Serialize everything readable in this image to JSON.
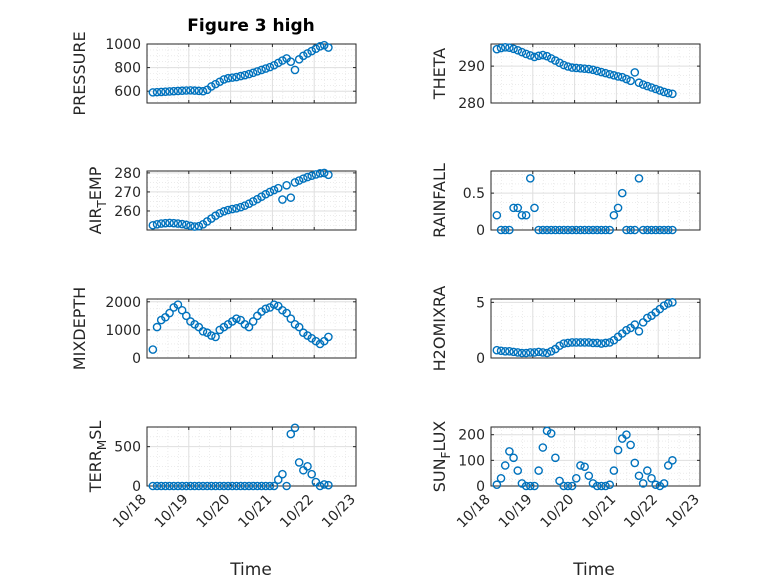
{
  "figure": {
    "title": "Figure 3 high",
    "xlabel": "Time"
  },
  "chart_data": [
    {
      "type": "scatter",
      "ylabel": "PRESSURE",
      "ylim": [
        500,
        1000
      ],
      "yticks": [
        600,
        800,
        1000
      ],
      "ytick_labels": [
        "600",
        "800",
        "1000"
      ],
      "title": "Figure 3 high",
      "grid": true,
      "series": [
        {
          "x": [
            0.14,
            0.24,
            0.34,
            0.44,
            0.54,
            0.64,
            0.74,
            0.84,
            0.94,
            1.04,
            1.14,
            1.24,
            1.34,
            1.44,
            1.54,
            1.64,
            1.74,
            1.84,
            1.94,
            2.04,
            2.14,
            2.24,
            2.34,
            2.44,
            2.54,
            2.64,
            2.74,
            2.84,
            2.94,
            3.04,
            3.14,
            3.24,
            3.34,
            3.44,
            3.54,
            3.64,
            3.74,
            3.84,
            3.94,
            4.04,
            4.14,
            4.24,
            4.34
          ],
          "y": [
            590,
            592,
            594,
            596,
            598,
            600,
            602,
            604,
            606,
            607,
            605,
            603,
            600,
            612,
            640,
            660,
            680,
            700,
            710,
            715,
            720,
            728,
            736,
            745,
            756,
            768,
            780,
            792,
            804,
            820,
            840,
            860,
            878,
            850,
            780,
            870,
            900,
            920,
            940,
            960,
            980,
            990,
            970
          ]
        }
      ]
    },
    {
      "type": "scatter",
      "ylabel": "THETA",
      "ylim": [
        280,
        296
      ],
      "yticks": [
        280,
        290
      ],
      "ytick_labels": [
        "280",
        "290"
      ],
      "grid": true,
      "series": [
        {
          "x": [
            0.14,
            0.24,
            0.34,
            0.44,
            0.54,
            0.64,
            0.74,
            0.84,
            0.94,
            1.04,
            1.14,
            1.24,
            1.34,
            1.44,
            1.54,
            1.64,
            1.74,
            1.84,
            1.94,
            2.04,
            2.14,
            2.24,
            2.34,
            2.44,
            2.54,
            2.64,
            2.74,
            2.84,
            2.94,
            3.04,
            3.14,
            3.24,
            3.34,
            3.44,
            3.54,
            3.64,
            3.74,
            3.84,
            3.94,
            4.04,
            4.14,
            4.24,
            4.34
          ],
          "y": [
            294.6,
            294.9,
            295.1,
            295.0,
            294.7,
            294.3,
            293.8,
            293.3,
            292.9,
            292.5,
            292.8,
            293.0,
            292.7,
            292.1,
            291.5,
            290.9,
            290.3,
            289.9,
            289.6,
            289.5,
            289.4,
            289.3,
            289.2,
            289.0,
            288.7,
            288.4,
            288.1,
            287.8,
            287.5,
            287.2,
            287.0,
            286.5,
            286.0,
            288.3,
            285.5,
            285.0,
            284.6,
            284.2,
            283.8,
            283.4,
            283.0,
            282.7,
            282.5
          ]
        }
      ]
    },
    {
      "type": "scatter",
      "ylabel": "AIR_TEMP",
      "ylim": [
        250,
        281
      ],
      "yticks": [
        260,
        270,
        280
      ],
      "ytick_labels": [
        "260",
        "270",
        "280"
      ],
      "grid": true,
      "series": [
        {
          "x": [
            0.14,
            0.24,
            0.34,
            0.44,
            0.54,
            0.64,
            0.74,
            0.84,
            0.94,
            1.04,
            1.14,
            1.24,
            1.34,
            1.44,
            1.54,
            1.64,
            1.74,
            1.84,
            1.94,
            2.04,
            2.14,
            2.24,
            2.34,
            2.44,
            2.54,
            2.64,
            2.74,
            2.84,
            2.94,
            3.04,
            3.14,
            3.24,
            3.34,
            3.44,
            3.54,
            3.64,
            3.74,
            3.84,
            3.94,
            4.04,
            4.14,
            4.24,
            4.34
          ],
          "y": [
            252.5,
            253.0,
            253.4,
            253.6,
            253.7,
            253.6,
            253.4,
            253.1,
            252.7,
            252.2,
            251.8,
            252.0,
            253.0,
            254.5,
            256.0,
            257.5,
            258.8,
            259.8,
            260.5,
            261.0,
            261.4,
            262.0,
            262.8,
            263.8,
            265.0,
            266.2,
            267.5,
            268.8,
            270.0,
            271.0,
            272.0,
            266.0,
            273.5,
            267.0,
            275.0,
            276.0,
            277.0,
            277.8,
            278.5,
            279.2,
            279.8,
            280.0,
            279.0
          ]
        }
      ]
    },
    {
      "type": "scatter",
      "ylabel": "RAINFALL",
      "ylim": [
        0,
        0.8
      ],
      "yticks": [
        0,
        0.5
      ],
      "ytick_labels": [
        "0",
        "0.5"
      ],
      "grid": true,
      "series": [
        {
          "x": [
            0.14,
            0.24,
            0.34,
            0.44,
            0.54,
            0.64,
            0.74,
            0.84,
            0.94,
            1.04,
            1.14,
            1.24,
            1.34,
            1.44,
            1.54,
            1.64,
            1.74,
            1.84,
            1.94,
            2.04,
            2.14,
            2.24,
            2.34,
            2.44,
            2.54,
            2.64,
            2.74,
            2.84,
            2.94,
            3.04,
            3.14,
            3.24,
            3.34,
            3.44,
            3.54,
            3.64,
            3.74,
            3.84,
            3.94,
            4.04,
            4.14,
            4.24,
            4.34
          ],
          "y": [
            0.2,
            0,
            0,
            0,
            0.3,
            0.3,
            0.2,
            0.2,
            0.7,
            0.3,
            0,
            0,
            0,
            0,
            0,
            0,
            0,
            0,
            0,
            0,
            0,
            0,
            0,
            0,
            0,
            0,
            0,
            0,
            0.2,
            0.3,
            0.5,
            0,
            0,
            0,
            0.7,
            0,
            0,
            0,
            0,
            0,
            0,
            0,
            0
          ]
        }
      ]
    },
    {
      "type": "scatter",
      "ylabel": "MIXDEPTH",
      "ylim": [
        0,
        2100
      ],
      "yticks": [
        0,
        1000,
        2000
      ],
      "ytick_labels": [
        "0",
        "1000",
        "2000"
      ],
      "grid": true,
      "series": [
        {
          "x": [
            0.14,
            0.24,
            0.34,
            0.44,
            0.54,
            0.64,
            0.74,
            0.84,
            0.94,
            1.04,
            1.14,
            1.24,
            1.34,
            1.44,
            1.54,
            1.64,
            1.74,
            1.84,
            1.94,
            2.04,
            2.14,
            2.24,
            2.34,
            2.44,
            2.54,
            2.64,
            2.74,
            2.84,
            2.94,
            3.04,
            3.14,
            3.24,
            3.34,
            3.44,
            3.54,
            3.64,
            3.74,
            3.84,
            3.94,
            4.04,
            4.14,
            4.24,
            4.34
          ],
          "y": [
            300,
            1100,
            1350,
            1450,
            1600,
            1800,
            1900,
            1700,
            1500,
            1300,
            1200,
            1100,
            950,
            900,
            800,
            750,
            1000,
            1100,
            1200,
            1300,
            1400,
            1350,
            1200,
            1100,
            1300,
            1500,
            1650,
            1750,
            1800,
            1900,
            1850,
            1700,
            1600,
            1400,
            1200,
            1100,
            900,
            800,
            700,
            600,
            500,
            600,
            750
          ]
        }
      ]
    },
    {
      "type": "scatter",
      "ylabel": "H2OMIXRA",
      "ylim": [
        0,
        5.3
      ],
      "yticks": [
        0,
        5
      ],
      "ytick_labels": [
        "0",
        "5"
      ],
      "grid": true,
      "series": [
        {
          "x": [
            0.14,
            0.24,
            0.34,
            0.44,
            0.54,
            0.64,
            0.74,
            0.84,
            0.94,
            1.04,
            1.14,
            1.24,
            1.34,
            1.44,
            1.54,
            1.64,
            1.74,
            1.84,
            1.94,
            2.04,
            2.14,
            2.24,
            2.34,
            2.44,
            2.54,
            2.64,
            2.74,
            2.84,
            2.94,
            3.04,
            3.14,
            3.24,
            3.34,
            3.44,
            3.54,
            3.64,
            3.74,
            3.84,
            3.94,
            4.04,
            4.14,
            4.24,
            4.34
          ],
          "y": [
            0.7,
            0.65,
            0.6,
            0.6,
            0.55,
            0.5,
            0.45,
            0.45,
            0.5,
            0.5,
            0.55,
            0.5,
            0.45,
            0.6,
            0.8,
            1.1,
            1.3,
            1.35,
            1.4,
            1.4,
            1.4,
            1.4,
            1.4,
            1.35,
            1.35,
            1.3,
            1.35,
            1.4,
            1.6,
            1.9,
            2.2,
            2.5,
            2.7,
            3.0,
            2.4,
            3.2,
            3.6,
            3.8,
            4.1,
            4.4,
            4.7,
            4.9,
            5.0
          ]
        }
      ]
    },
    {
      "type": "scatter",
      "ylabel": "TERR_MSL",
      "ylim": [
        0,
        750
      ],
      "yticks": [
        0,
        500
      ],
      "ytick_labels": [
        "0",
        "500"
      ],
      "grid": true,
      "series": [
        {
          "x": [
            0.14,
            0.24,
            0.34,
            0.44,
            0.54,
            0.64,
            0.74,
            0.84,
            0.94,
            1.04,
            1.14,
            1.24,
            1.34,
            1.44,
            1.54,
            1.64,
            1.74,
            1.84,
            1.94,
            2.04,
            2.14,
            2.24,
            2.34,
            2.44,
            2.54,
            2.64,
            2.74,
            2.84,
            2.94,
            3.04,
            3.14,
            3.24,
            3.34,
            3.44,
            3.54,
            3.64,
            3.74,
            3.84,
            3.94,
            4.04,
            4.14,
            4.24,
            4.34
          ],
          "y": [
            0,
            0,
            0,
            0,
            0,
            0,
            0,
            0,
            0,
            0,
            0,
            0,
            0,
            0,
            0,
            0,
            0,
            0,
            0,
            0,
            0,
            0,
            0,
            0,
            0,
            0,
            0,
            0,
            0,
            0,
            80,
            150,
            0,
            660,
            740,
            300,
            200,
            250,
            150,
            50,
            0,
            20,
            10
          ]
        }
      ]
    },
    {
      "type": "scatter",
      "ylabel": "SUN_FLUX",
      "ylim": [
        0,
        230
      ],
      "yticks": [
        0,
        100,
        200
      ],
      "ytick_labels": [
        "0",
        "100",
        "200"
      ],
      "grid": true,
      "series": [
        {
          "x": [
            0.14,
            0.24,
            0.34,
            0.44,
            0.54,
            0.64,
            0.74,
            0.84,
            0.94,
            1.04,
            1.14,
            1.24,
            1.34,
            1.44,
            1.54,
            1.64,
            1.74,
            1.84,
            1.94,
            2.04,
            2.14,
            2.24,
            2.34,
            2.44,
            2.54,
            2.64,
            2.74,
            2.84,
            2.94,
            3.04,
            3.14,
            3.24,
            3.34,
            3.44,
            3.54,
            3.64,
            3.74,
            3.84,
            3.94,
            4.04,
            4.14,
            4.24,
            4.34
          ],
          "y": [
            5,
            30,
            80,
            135,
            110,
            60,
            10,
            0,
            0,
            0,
            60,
            150,
            215,
            205,
            110,
            20,
            0,
            0,
            0,
            30,
            80,
            75,
            40,
            10,
            0,
            0,
            0,
            5,
            60,
            140,
            185,
            200,
            160,
            90,
            40,
            10,
            60,
            30,
            5,
            0,
            10,
            80,
            100
          ]
        }
      ]
    }
  ],
  "xaxis": {
    "xlim": [
      0,
      5
    ],
    "ticks": [
      0,
      1,
      2,
      3,
      4,
      5
    ],
    "tick_labels": [
      "10/18",
      "10/19",
      "10/20",
      "10/21",
      "10/22",
      "10/23"
    ]
  },
  "colors": {
    "marker": "#0072BD",
    "axis": "#262626",
    "grid": "#dfdfdf"
  }
}
